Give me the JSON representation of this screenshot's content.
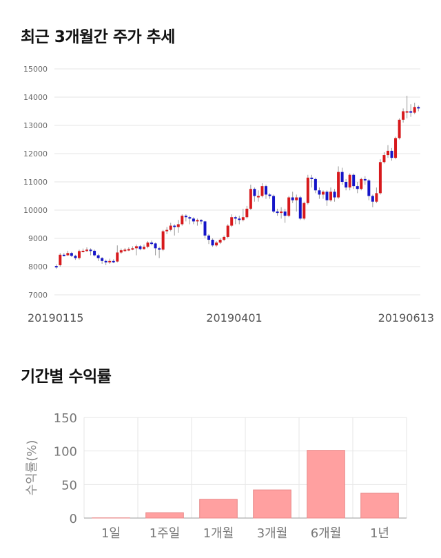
{
  "chart_data": [
    {
      "type": "candlestick",
      "title": "최근 3개월간 주가 추세",
      "ylim": [
        7000,
        15000
      ],
      "yticks": [
        7000,
        8000,
        9000,
        10000,
        11000,
        12000,
        13000,
        14000,
        15000
      ],
      "x_tick_labels": [
        "20190115",
        "20190401",
        "20190613"
      ],
      "grid": true,
      "colors": {
        "up": "#d7191c",
        "down": "#1515c8",
        "wick": "#999999"
      },
      "candles": [
        [
          8020,
          7980,
          8080,
          7920
        ],
        [
          8050,
          8420,
          8480,
          8000
        ],
        [
          8420,
          8400,
          8480,
          8360
        ],
        [
          8400,
          8480,
          8560,
          8380
        ],
        [
          8480,
          8380,
          8520,
          8340
        ],
        [
          8380,
          8300,
          8420,
          8240
        ],
        [
          8300,
          8550,
          8600,
          8250
        ],
        [
          8550,
          8560,
          8640,
          8500
        ],
        [
          8560,
          8600,
          8680,
          8520
        ],
        [
          8600,
          8560,
          8650,
          8400
        ],
        [
          8560,
          8400,
          8600,
          8360
        ],
        [
          8400,
          8300,
          8450,
          8200
        ],
        [
          8300,
          8200,
          8340,
          8100
        ],
        [
          8200,
          8150,
          8250,
          8050
        ],
        [
          8150,
          8200,
          8280,
          8100
        ],
        [
          8200,
          8180,
          8260,
          8120
        ],
        [
          8180,
          8500,
          8750,
          8150
        ],
        [
          8500,
          8580,
          8640,
          8450
        ],
        [
          8580,
          8600,
          8660,
          8520
        ],
        [
          8600,
          8620,
          8680,
          8550
        ],
        [
          8620,
          8650,
          8720,
          8580
        ],
        [
          8650,
          8720,
          8780,
          8400
        ],
        [
          8720,
          8620,
          8760,
          8580
        ],
        [
          8620,
          8700,
          8780,
          8600
        ],
        [
          8700,
          8850,
          8900,
          8650
        ],
        [
          8850,
          8820,
          8920,
          8750
        ],
        [
          8820,
          8650,
          8850,
          8400
        ],
        [
          8650,
          8600,
          8700,
          8300
        ],
        [
          8600,
          9250,
          9300,
          8550
        ],
        [
          9250,
          9300,
          9400,
          9150
        ],
        [
          9300,
          9450,
          9550,
          9250
        ],
        [
          9450,
          9400,
          9500,
          9100
        ],
        [
          9400,
          9500,
          9650,
          9200
        ],
        [
          9500,
          9800,
          9850,
          9450
        ],
        [
          9800,
          9750,
          9850,
          9600
        ],
        [
          9750,
          9700,
          9800,
          9500
        ],
        [
          9700,
          9600,
          9750,
          9500
        ],
        [
          9600,
          9650,
          9700,
          9450
        ],
        [
          9650,
          9600,
          9680,
          9500
        ],
        [
          9600,
          9100,
          9620,
          9000
        ],
        [
          9100,
          8950,
          9150,
          8800
        ],
        [
          8950,
          8750,
          9000,
          8700
        ],
        [
          8750,
          8850,
          8900,
          8700
        ],
        [
          8850,
          8950,
          9000,
          8800
        ],
        [
          8950,
          9050,
          9100,
          8900
        ],
        [
          9050,
          9450,
          9500,
          9000
        ],
        [
          9450,
          9750,
          9850,
          9400
        ],
        [
          9750,
          9700,
          9800,
          9500
        ],
        [
          9700,
          9650,
          9800,
          9500
        ],
        [
          9650,
          9750,
          10050,
          9600
        ],
        [
          9750,
          10050,
          10150,
          9700
        ],
        [
          10050,
          10750,
          10900,
          10000
        ],
        [
          10750,
          10500,
          10800,
          10300
        ],
        [
          10500,
          10500,
          10700,
          10300
        ],
        [
          10500,
          10850,
          10950,
          10450
        ],
        [
          10850,
          10550,
          10900,
          10400
        ],
        [
          10550,
          10500,
          10600,
          10400
        ],
        [
          10500,
          9950,
          10550,
          9900
        ],
        [
          9950,
          9900,
          10050,
          9800
        ],
        [
          9900,
          9950,
          10100,
          9700
        ],
        [
          9950,
          9800,
          10050,
          9550
        ],
        [
          9800,
          10450,
          10500,
          9750
        ],
        [
          10450,
          10350,
          10650,
          10250
        ],
        [
          10350,
          10450,
          10550,
          9950
        ],
        [
          10450,
          9700,
          10500,
          9650
        ],
        [
          9700,
          10250,
          10300,
          9650
        ],
        [
          10250,
          11150,
          11250,
          10200
        ],
        [
          11150,
          11100,
          11250,
          10800
        ],
        [
          11100,
          10700,
          11150,
          10600
        ],
        [
          10700,
          10550,
          10800,
          10400
        ],
        [
          10550,
          10650,
          10700,
          10400
        ],
        [
          10650,
          10350,
          10700,
          10150
        ],
        [
          10350,
          10650,
          10800,
          10300
        ],
        [
          10650,
          10450,
          10750,
          10300
        ],
        [
          10450,
          11350,
          11550,
          10400
        ],
        [
          11350,
          11000,
          11500,
          10900
        ],
        [
          11000,
          10800,
          11100,
          10700
        ],
        [
          10800,
          11250,
          11300,
          10700
        ],
        [
          11250,
          10850,
          11300,
          10750
        ],
        [
          10850,
          10750,
          11000,
          10600
        ],
        [
          10750,
          11100,
          11150,
          10700
        ],
        [
          11100,
          11050,
          11200,
          10900
        ],
        [
          11050,
          10500,
          11100,
          10350
        ],
        [
          10500,
          10300,
          10550,
          10100
        ],
        [
          10300,
          10600,
          10800,
          10250
        ],
        [
          10600,
          11700,
          11800,
          10550
        ],
        [
          11700,
          11950,
          12050,
          11650
        ],
        [
          11950,
          12100,
          12300,
          11850
        ],
        [
          12100,
          11850,
          12200,
          11750
        ],
        [
          11850,
          12550,
          12600,
          11800
        ],
        [
          12550,
          13200,
          13250,
          12500
        ],
        [
          13200,
          13500,
          13600,
          13100
        ],
        [
          13500,
          13500,
          14050,
          13250
        ],
        [
          13500,
          13450,
          13750,
          13300
        ],
        [
          13450,
          13650,
          13800,
          13400
        ],
        [
          13650,
          13600,
          13700,
          13500
        ]
      ]
    },
    {
      "type": "bar",
      "title": "기간별 수익률",
      "categories": [
        "1일",
        "1주일",
        "1개월",
        "3개월",
        "6개월",
        "1년"
      ],
      "values": [
        0.3,
        8,
        28,
        42,
        101,
        37
      ],
      "ylabel": "수익률(%)",
      "ylim": [
        0,
        150
      ],
      "yticks": [
        0,
        50,
        100,
        150
      ],
      "grid": true,
      "color": "#ffa0a0",
      "edge_color": "#e88888"
    }
  ]
}
